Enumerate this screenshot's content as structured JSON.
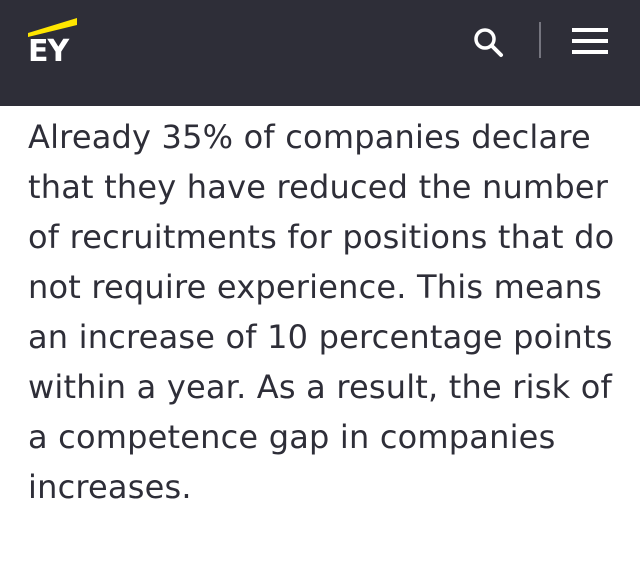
{
  "header": {
    "logo_text": "EY",
    "background_color": "#2e2e38",
    "accent_color": "#ffe600",
    "icons": [
      "search-icon",
      "menu-icon"
    ]
  },
  "article": {
    "paragraph": "Already 35% of companies declare that they have reduced the number of recruitments for positions that do not require experience. This means an increase of 10 percentage points within a year. As a result, the risk of a competence gap in companies increases."
  }
}
